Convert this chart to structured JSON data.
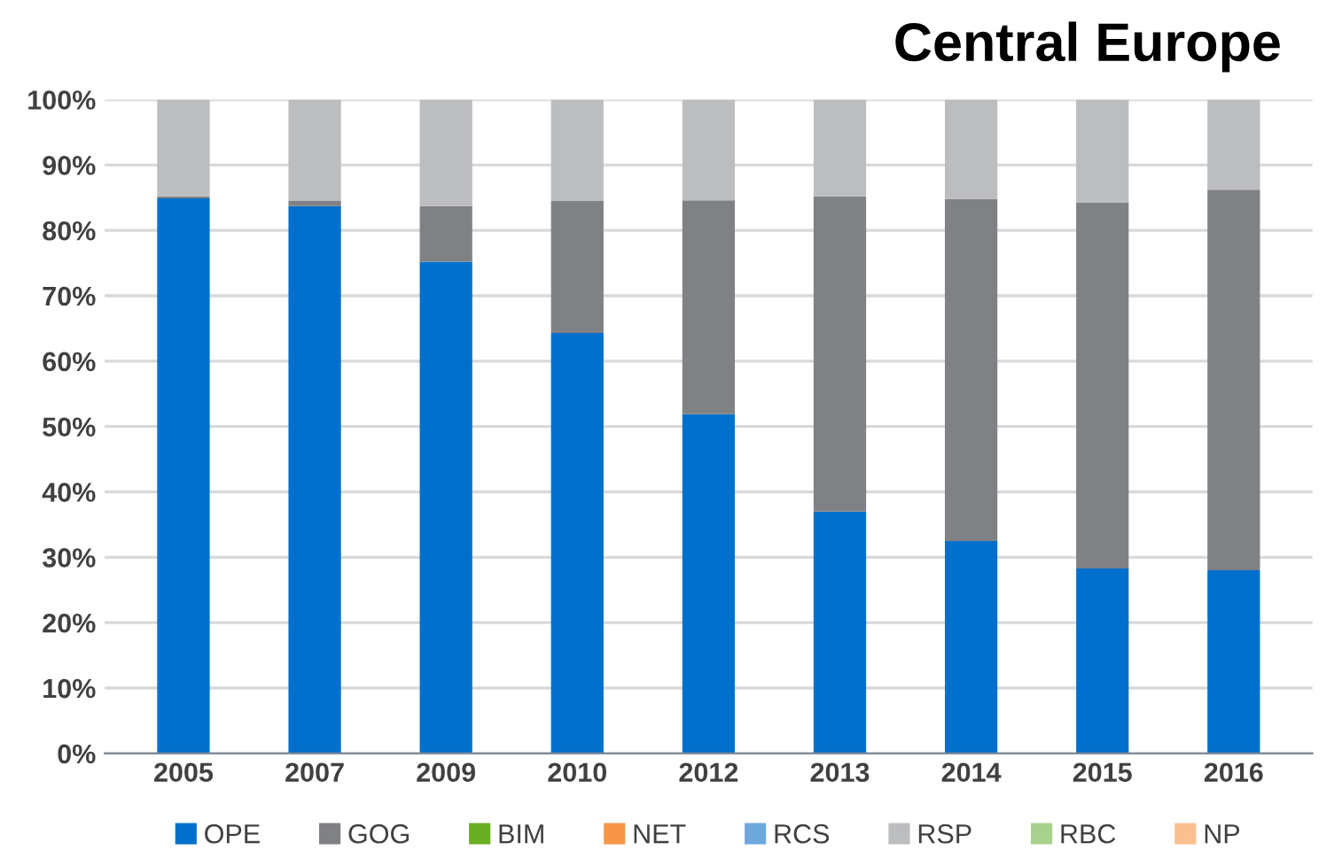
{
  "chart_data": {
    "type": "bar",
    "title": "Central Europe",
    "stacked": true,
    "categories": [
      "2005",
      "2007",
      "2009",
      "2010",
      "2012",
      "2013",
      "2014",
      "2015",
      "2016"
    ],
    "series": [
      {
        "name": "OPE",
        "color": "#0070cc",
        "values": [
          84.9,
          83.7,
          75.2,
          64.3,
          51.9,
          37.0,
          32.5,
          28.3,
          28.0
        ]
      },
      {
        "name": "GOG",
        "color": "#808184",
        "values": [
          0.3,
          0.8,
          8.5,
          20.2,
          32.7,
          48.2,
          52.3,
          56.0,
          58.2
        ]
      },
      {
        "name": "BIM",
        "color": "#6aaf23",
        "values": [
          0,
          0,
          0,
          0,
          0,
          0,
          0,
          0,
          0
        ]
      },
      {
        "name": "NET",
        "color": "#f79646",
        "values": [
          0,
          0,
          0,
          0,
          0,
          0,
          0,
          0,
          0
        ]
      },
      {
        "name": "RCS",
        "color": "#6fa8dc",
        "values": [
          0,
          0,
          0,
          0,
          0,
          0,
          0,
          0,
          0
        ]
      },
      {
        "name": "RSP",
        "color": "#bcbdbf",
        "values": [
          14.8,
          15.5,
          16.3,
          15.5,
          15.4,
          14.8,
          15.2,
          15.7,
          13.8
        ]
      },
      {
        "name": "RBC",
        "color": "#a9d18e",
        "values": [
          0,
          0,
          0,
          0,
          0,
          0,
          0,
          0,
          0
        ]
      },
      {
        "name": "NP",
        "color": "#fac090",
        "values": [
          0,
          0,
          0,
          0,
          0,
          0,
          0,
          0,
          0
        ]
      }
    ],
    "ylim": [
      0,
      100
    ],
    "yticks": [
      {
        "value": 0,
        "label": "0%"
      },
      {
        "value": 10,
        "label": "10%"
      },
      {
        "value": 20,
        "label": "20%"
      },
      {
        "value": 30,
        "label": "30%"
      },
      {
        "value": 40,
        "label": "40%"
      },
      {
        "value": 50,
        "label": "50%"
      },
      {
        "value": 60,
        "label": "60%"
      },
      {
        "value": 70,
        "label": "70%"
      },
      {
        "value": 80,
        "label": "80%"
      },
      {
        "value": 90,
        "label": "90%"
      },
      {
        "value": 100,
        "label": "100%"
      }
    ],
    "grid": "y",
    "legend": "bottom"
  }
}
